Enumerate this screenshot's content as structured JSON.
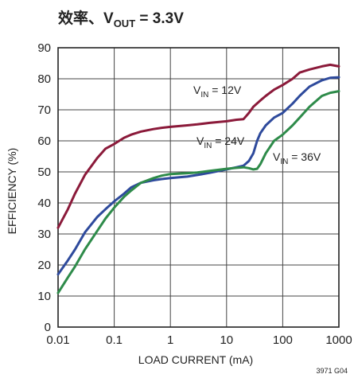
{
  "chart_data": {
    "type": "line",
    "title": {
      "prefix": "效率、V",
      "sub": "OUT",
      "suffix": " = 3.3V"
    },
    "xlabel": "LOAD CURRENT (mA)",
    "ylabel": "EFFICIENCY (%)",
    "x_scale": "log",
    "xlim": [
      0.01,
      1000
    ],
    "ylim": [
      0,
      90
    ],
    "x_ticks": [
      0.01,
      0.1,
      1,
      10,
      100,
      1000
    ],
    "x_tick_labels": [
      "0.01",
      "0.1",
      "1",
      "10",
      "100",
      "1000"
    ],
    "y_ticks": [
      0,
      10,
      20,
      30,
      40,
      50,
      60,
      70,
      80,
      90
    ],
    "y_tick_labels": [
      "0",
      "10",
      "20",
      "30",
      "40",
      "50",
      "60",
      "70",
      "80",
      "90"
    ],
    "grid": true,
    "series": [
      {
        "name": "VIN = 12V",
        "label": {
          "prefix": "V",
          "sub": "IN",
          "suffix": " = 12V"
        },
        "color": "#8b1a3a",
        "x": [
          0.01,
          0.015,
          0.02,
          0.03,
          0.05,
          0.07,
          0.1,
          0.15,
          0.2,
          0.3,
          0.5,
          0.7,
          1,
          2,
          3,
          5,
          10,
          15,
          20,
          25,
          30,
          40,
          50,
          70,
          100,
          150,
          200,
          300,
          500,
          700,
          1000
        ],
        "y": [
          32,
          38,
          43,
          49,
          54.5,
          57.5,
          59,
          61,
          62,
          63,
          63.8,
          64.2,
          64.5,
          65,
          65.3,
          65.8,
          66.3,
          66.8,
          67,
          69,
          71,
          73,
          74.5,
          76.5,
          78,
          80,
          82,
          83,
          84,
          84.5,
          84
        ]
      },
      {
        "name": "VIN = 24V",
        "label": {
          "prefix": "V",
          "sub": "IN",
          "suffix": " = 24V"
        },
        "color": "#2e4a9c",
        "x": [
          0.01,
          0.015,
          0.02,
          0.03,
          0.05,
          0.07,
          0.1,
          0.15,
          0.2,
          0.3,
          0.5,
          0.7,
          1,
          2,
          3,
          5,
          10,
          15,
          20,
          25,
          30,
          35,
          40,
          50,
          70,
          100,
          150,
          200,
          300,
          500,
          700,
          1000
        ],
        "y": [
          17,
          21.5,
          25,
          30.5,
          35.5,
          38,
          40.5,
          43,
          45,
          46.5,
          47.3,
          47.7,
          48,
          48.5,
          49,
          49.7,
          50.8,
          51.5,
          52,
          53.5,
          56,
          60,
          62.5,
          65,
          67.5,
          69,
          72,
          74.5,
          77.5,
          79.5,
          80.3,
          80.5
        ]
      },
      {
        "name": "VIN = 36V",
        "label": {
          "prefix": "V",
          "sub": "IN",
          "suffix": " = 36V"
        },
        "color": "#2e8b4a",
        "x": [
          0.01,
          0.015,
          0.02,
          0.03,
          0.05,
          0.07,
          0.1,
          0.15,
          0.2,
          0.3,
          0.5,
          0.7,
          1,
          2,
          3,
          5,
          10,
          15,
          20,
          25,
          30,
          35,
          40,
          50,
          70,
          100,
          150,
          200,
          300,
          500,
          700,
          1000
        ],
        "y": [
          11,
          16,
          19.5,
          25,
          31,
          35,
          38.5,
          42,
          44,
          46.5,
          48,
          48.8,
          49.3,
          49.6,
          49.8,
          50.3,
          51,
          51.3,
          51.5,
          51.2,
          50.8,
          51,
          52.5,
          56,
          60,
          62,
          65,
          67.5,
          71,
          74.5,
          75.5,
          76
        ]
      }
    ],
    "code": "3971 G04"
  }
}
